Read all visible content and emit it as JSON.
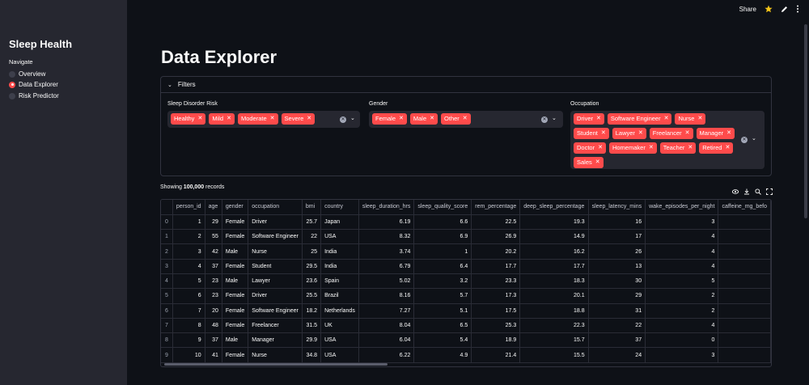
{
  "header": {
    "share_label": "Share",
    "icons": [
      "star-icon",
      "edit-pencil-icon",
      "more-vert-icon"
    ]
  },
  "sidebar": {
    "title": "Sleep Health",
    "nav_label": "Navigate",
    "items": [
      {
        "label": "Overview",
        "selected": false
      },
      {
        "label": "Data Explorer",
        "selected": true
      },
      {
        "label": "Risk Predictor",
        "selected": false
      }
    ]
  },
  "main": {
    "title": "Data Explorer",
    "filters": {
      "label": "Filters",
      "risk": {
        "label": "Sleep Disorder Risk",
        "tags": [
          "Healthy",
          "Mild",
          "Moderate",
          "Severe"
        ]
      },
      "gender": {
        "label": "Gender",
        "tags": [
          "Female",
          "Male",
          "Other"
        ]
      },
      "occupation": {
        "label": "Occupation",
        "tags": [
          "Driver",
          "Software Engineer",
          "Nurse",
          "Student",
          "Lawyer",
          "Freelancer",
          "Manager",
          "Doctor",
          "Homemaker",
          "Teacher",
          "Retired",
          "Sales"
        ]
      }
    },
    "records": {
      "prefix": "Showing ",
      "count": "100,000",
      "suffix": " records"
    },
    "table": {
      "columns": [
        "",
        "person_id",
        "age",
        "gender",
        "occupation",
        "bmi",
        "country",
        "sleep_duration_hrs",
        "sleep_quality_score",
        "rem_percentage",
        "deep_sleep_percentage",
        "sleep_latency_mins",
        "wake_episodes_per_night",
        "caffeine_mg_befo"
      ],
      "rows": [
        [
          "0",
          "1",
          "29",
          "Female",
          "Driver",
          "25.7",
          "Japan",
          "6.19",
          "6.6",
          "22.5",
          "19.3",
          "16",
          "3",
          ""
        ],
        [
          "1",
          "2",
          "55",
          "Female",
          "Software Engineer",
          "22",
          "USA",
          "8.32",
          "6.9",
          "26.9",
          "14.9",
          "17",
          "4",
          ""
        ],
        [
          "2",
          "3",
          "42",
          "Male",
          "Nurse",
          "25",
          "India",
          "3.74",
          "1",
          "20.2",
          "16.2",
          "26",
          "4",
          ""
        ],
        [
          "3",
          "4",
          "37",
          "Female",
          "Student",
          "29.5",
          "India",
          "6.79",
          "6.4",
          "17.7",
          "17.7",
          "13",
          "4",
          ""
        ],
        [
          "4",
          "5",
          "23",
          "Male",
          "Lawyer",
          "23.6",
          "Spain",
          "5.02",
          "3.2",
          "23.3",
          "18.3",
          "30",
          "5",
          ""
        ],
        [
          "5",
          "6",
          "23",
          "Female",
          "Driver",
          "25.5",
          "Brazil",
          "8.16",
          "5.7",
          "17.3",
          "20.1",
          "29",
          "2",
          ""
        ],
        [
          "6",
          "7",
          "20",
          "Female",
          "Software Engineer",
          "18.2",
          "Netherlands",
          "7.27",
          "5.1",
          "17.5",
          "18.8",
          "31",
          "2",
          ""
        ],
        [
          "7",
          "8",
          "48",
          "Female",
          "Freelancer",
          "31.5",
          "UK",
          "8.04",
          "6.5",
          "25.3",
          "22.3",
          "22",
          "4",
          ""
        ],
        [
          "8",
          "9",
          "37",
          "Male",
          "Manager",
          "29.9",
          "USA",
          "6.04",
          "5.4",
          "18.9",
          "15.7",
          "37",
          "0",
          ""
        ],
        [
          "9",
          "10",
          "41",
          "Female",
          "Nurse",
          "34.8",
          "USA",
          "6.22",
          "4.9",
          "21.4",
          "15.5",
          "24",
          "3",
          ""
        ]
      ]
    }
  },
  "colors": {
    "accent": "#ff4b4b",
    "background": "#0e1117",
    "sidebar": "#262730"
  }
}
